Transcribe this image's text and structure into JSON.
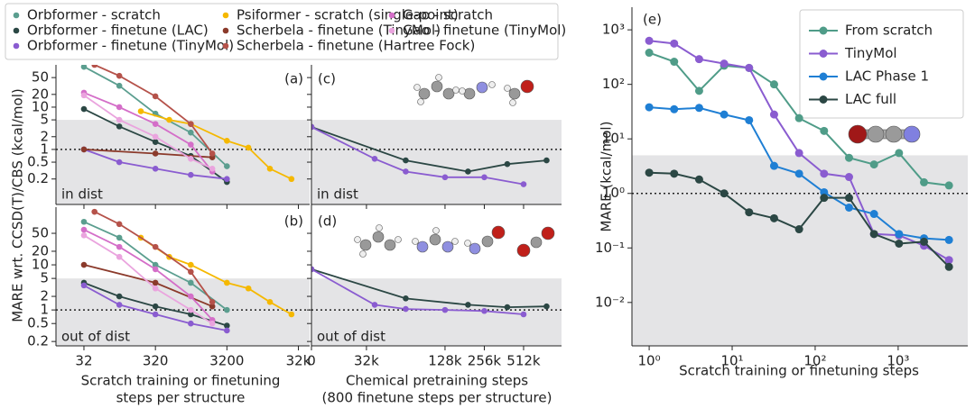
{
  "chart_data": [
    {
      "type": "line",
      "tag": "(a)",
      "note": "in dist",
      "ylabel": "MARE wrt. CCSD(T)/CBS (kcal/mol)",
      "legend": "top",
      "xscale": "log",
      "yscale": "log",
      "xlim": [
        13,
        46000
      ],
      "ylim": [
        0.05,
        100
      ],
      "xticks": [
        32,
        320,
        3200,
        32000
      ],
      "yticks": [
        0.2,
        0.5,
        1,
        2,
        5,
        10,
        20,
        50
      ],
      "shade_below": 5,
      "hline": 1,
      "xtick_labels": false,
      "series": [
        {
          "name": "Orbformer - scratch",
          "color": "#5b9e8f",
          "x": [
            32,
            100,
            320,
            1000,
            3200
          ],
          "values": [
            90,
            32,
            7,
            2.5,
            0.4
          ]
        },
        {
          "name": "Orbformer - finetune (LAC)",
          "color": "#2b4744",
          "x": [
            32,
            100,
            320,
            1000,
            3200
          ],
          "values": [
            9,
            3.5,
            1.5,
            0.7,
            0.17
          ]
        },
        {
          "name": "Orbformer - finetune (TinyMol)",
          "color": "#8a5cd0",
          "x": [
            32,
            100,
            320,
            1000,
            3200
          ],
          "values": [
            1.0,
            0.5,
            0.35,
            0.25,
            0.2
          ]
        },
        {
          "name": "Psiformer - scratch (single-point)",
          "color": "#f5b800",
          "x": [
            200,
            500,
            1000,
            3200,
            6400,
            12800,
            25600
          ],
          "values": [
            8,
            5,
            4,
            1.6,
            1.1,
            0.35,
            0.2
          ]
        },
        {
          "name": "Scherbela - finetune (TinyMol)",
          "color": "#8b3a2b",
          "x": [
            32,
            320,
            2000
          ],
          "values": [
            1.0,
            0.8,
            0.65
          ]
        },
        {
          "name": "Scherbela - finetune (Hartree Fock)",
          "color": "#b5524a",
          "x": [
            45,
            100,
            320,
            1000,
            2000
          ],
          "values": [
            100,
            55,
            18,
            4,
            0.8
          ]
        },
        {
          "name": "Gao - scratch",
          "color": "#d46ec8",
          "x": [
            32,
            100,
            320,
            1000,
            2000
          ],
          "values": [
            22,
            10,
            4,
            1.3,
            0.3
          ]
        },
        {
          "name": "Gao - finetune (TinyMol)",
          "color": "#eaa4de",
          "x": [
            32,
            100,
            320,
            1000,
            2000
          ],
          "values": [
            19,
            5,
            2,
            0.6,
            0.35
          ]
        }
      ]
    },
    {
      "type": "line",
      "tag": "(b)",
      "note": "out of dist",
      "xlabel": [
        "Scratch training or finetuning",
        "steps per structure"
      ],
      "xscale": "log",
      "yscale": "log",
      "xlim": [
        13,
        46000
      ],
      "ylim": [
        0.16,
        190
      ],
      "xticks": [
        32,
        320,
        3200,
        {
          "value": 32000,
          "label": "32k"
        }
      ],
      "yticks": [
        0.2,
        0.5,
        1,
        2,
        5,
        10,
        20,
        50
      ],
      "shade_below": 5,
      "hline": 1,
      "series": [
        {
          "color": "#5b9e8f",
          "x": [
            32,
            100,
            320,
            1000,
            3200
          ],
          "values": [
            90,
            40,
            10,
            4,
            1.0
          ]
        },
        {
          "color": "#2b4744",
          "x": [
            32,
            100,
            320,
            1000,
            3200
          ],
          "values": [
            4,
            2,
            1.2,
            0.8,
            0.45
          ]
        },
        {
          "color": "#8a5cd0",
          "x": [
            32,
            100,
            320,
            1000,
            3200
          ],
          "values": [
            3.5,
            1.3,
            0.8,
            0.5,
            0.35
          ]
        },
        {
          "color": "#f5b800",
          "x": [
            200,
            500,
            1000,
            3200,
            6400,
            12800,
            25600
          ],
          "values": [
            40,
            15,
            10,
            4,
            3,
            1.5,
            0.8
          ]
        },
        {
          "color": "#8b3a2b",
          "x": [
            32,
            320,
            2000
          ],
          "values": [
            10,
            4,
            1.2
          ]
        },
        {
          "color": "#b5524a",
          "x": [
            45,
            100,
            320,
            1000,
            2000
          ],
          "values": [
            150,
            80,
            25,
            7,
            1.5
          ]
        },
        {
          "color": "#d46ec8",
          "x": [
            32,
            100,
            320,
            1000,
            2000
          ],
          "values": [
            60,
            25,
            8,
            2,
            0.6
          ]
        },
        {
          "color": "#eaa4de",
          "x": [
            32,
            100,
            320,
            1000,
            2000
          ],
          "values": [
            45,
            15,
            3,
            1,
            0.5
          ]
        }
      ]
    },
    {
      "type": "line",
      "tag": "(c)",
      "note": "in dist",
      "xscale": "symlog",
      "linthresh": 32000,
      "linscale": 1.4,
      "yscale": "log",
      "xlim": [
        0,
        1000000
      ],
      "ylim": [
        0.05,
        100
      ],
      "xticks": [
        0,
        32000,
        128000,
        256000,
        512000
      ],
      "yticks": [
        0.2,
        0.5,
        1,
        2,
        5,
        10,
        20,
        50
      ],
      "shade_below": 5,
      "hline": 1,
      "xtick_labels": false,
      "ytick_labels": false,
      "series": [
        {
          "color": "#2b4744",
          "x": [
            0,
            64000,
            192000,
            384000,
            768000
          ],
          "values": [
            3.4,
            0.55,
            0.3,
            0.45,
            0.55
          ]
        },
        {
          "color": "#8a5cd0",
          "x": [
            0,
            37000,
            64000,
            128000,
            256000,
            512000
          ],
          "values": [
            3.4,
            0.6,
            0.3,
            0.22,
            0.22,
            0.15
          ]
        }
      ]
    },
    {
      "type": "line",
      "tag": "(d)",
      "note": "out of dist",
      "xlabel": [
        "Chemical pretraining steps",
        "(800 finetune steps per structure)"
      ],
      "xscale": "symlog",
      "linthresh": 32000,
      "linscale": 1.4,
      "yscale": "log",
      "xlim": [
        0,
        1000000
      ],
      "ylim": [
        0.16,
        190
      ],
      "xticks": [
        0,
        {
          "value": 32000,
          "label": "32k"
        },
        {
          "value": 128000,
          "label": "128k"
        },
        {
          "value": 256000,
          "label": "256k"
        },
        {
          "value": 512000,
          "label": "512k"
        }
      ],
      "yticks": [
        0.2,
        0.5,
        1,
        2,
        5,
        10,
        20,
        50
      ],
      "shade_below": 5,
      "hline": 1,
      "ytick_labels": false,
      "series": [
        {
          "color": "#2b4744",
          "x": [
            0,
            64000,
            192000,
            384000,
            768000
          ],
          "values": [
            8,
            1.8,
            1.3,
            1.15,
            1.2
          ]
        },
        {
          "color": "#8a5cd0",
          "x": [
            0,
            37000,
            64000,
            128000,
            256000,
            512000
          ],
          "values": [
            8,
            1.3,
            1.05,
            1.0,
            0.95,
            0.8
          ]
        }
      ]
    },
    {
      "type": "line",
      "tag": "(e)",
      "xlabel": [
        "Scratch training or finetuning steps"
      ],
      "ylabel": "MARE (kcal/mol)",
      "legend": "upper right",
      "xscale": "log",
      "yscale": "log",
      "xlim": [
        0.62,
        6900
      ],
      "ylim": [
        0.0016,
        2600
      ],
      "xticks": [
        {
          "value": 1,
          "label": "10⁰"
        },
        {
          "value": 10,
          "label": "10¹"
        },
        {
          "value": 100,
          "label": "10²"
        },
        {
          "value": 1000,
          "label": "10³"
        }
      ],
      "yticks": [
        {
          "value": 0.01,
          "label": "10⁻²"
        },
        {
          "value": 0.1,
          "label": "10⁻¹"
        },
        {
          "value": 1,
          "label": "10⁰"
        },
        {
          "value": 10,
          "label": "10¹"
        },
        {
          "value": 100,
          "label": "10²"
        },
        {
          "value": 1000,
          "label": "10³"
        }
      ],
      "shade_below": 5,
      "hline": 1,
      "series": [
        {
          "name": "From scratch",
          "color": "#4f9c88",
          "x": [
            1,
            2,
            4,
            8,
            16,
            32,
            64,
            128,
            256,
            512,
            1024,
            2048,
            4096
          ],
          "values": [
            380,
            260,
            76,
            220,
            200,
            100,
            24,
            14,
            4.5,
            3.4,
            5.5,
            1.6,
            1.4
          ]
        },
        {
          "name": "TinyMol",
          "color": "#8a5cd0",
          "x": [
            1,
            2,
            4,
            8,
            16,
            32,
            64,
            128,
            256,
            512,
            1024,
            2048,
            4096
          ],
          "values": [
            630,
            560,
            290,
            240,
            200,
            28,
            5.5,
            2.3,
            2.0,
            0.18,
            0.17,
            0.11,
            0.06
          ]
        },
        {
          "name": "LAC Phase 1",
          "color": "#1f7fd4",
          "x": [
            1,
            2,
            4,
            8,
            16,
            32,
            64,
            128,
            256,
            512,
            1024,
            2048,
            4096
          ],
          "values": [
            38,
            35,
            37,
            28,
            22,
            3.2,
            2.3,
            1.05,
            0.55,
            0.42,
            0.18,
            0.15,
            0.14
          ]
        },
        {
          "name": "LAC full",
          "color": "#2b4744",
          "x": [
            1,
            2,
            4,
            8,
            16,
            32,
            64,
            128,
            256,
            512,
            1024,
            2048,
            4096
          ],
          "values": [
            2.4,
            2.3,
            1.8,
            1.0,
            0.45,
            0.35,
            0.22,
            0.83,
            0.83,
            0.18,
            0.12,
            0.13,
            0.045
          ]
        }
      ]
    }
  ]
}
